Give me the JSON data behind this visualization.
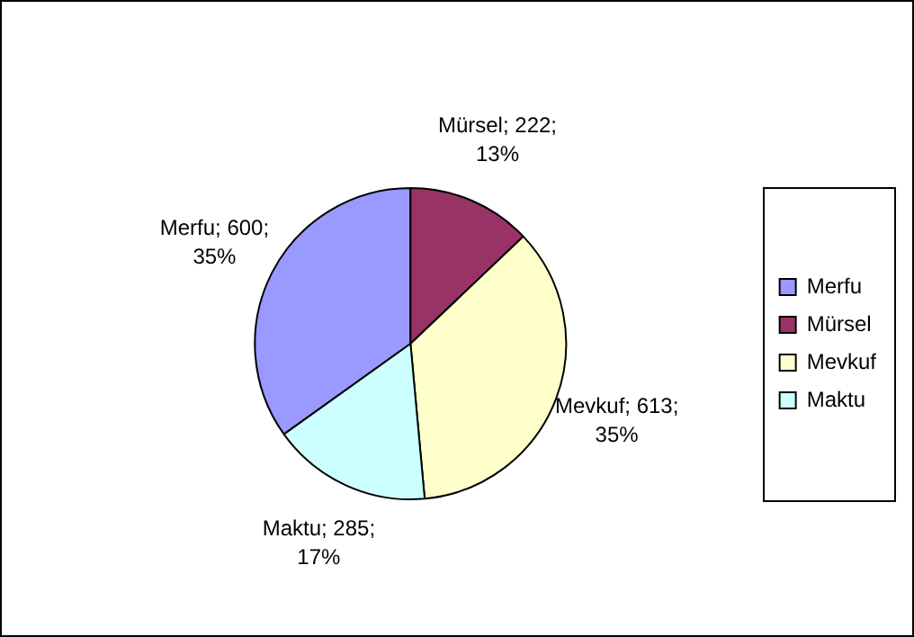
{
  "chart_data": {
    "type": "pie",
    "categories": [
      "Merfu",
      "Mürsel",
      "Mevkuf",
      "Maktu"
    ],
    "values": [
      600,
      222,
      613,
      285
    ],
    "colors": [
      "#9999ff",
      "#993366",
      "#ffffcc",
      "#ccffff"
    ],
    "value_labels": [
      "Merfu; 600; 35%",
      "Mürsel; 222; 13%",
      "Mevkuf; 613; 35%",
      "Maktu; 285; 17%"
    ],
    "legend": "right"
  }
}
